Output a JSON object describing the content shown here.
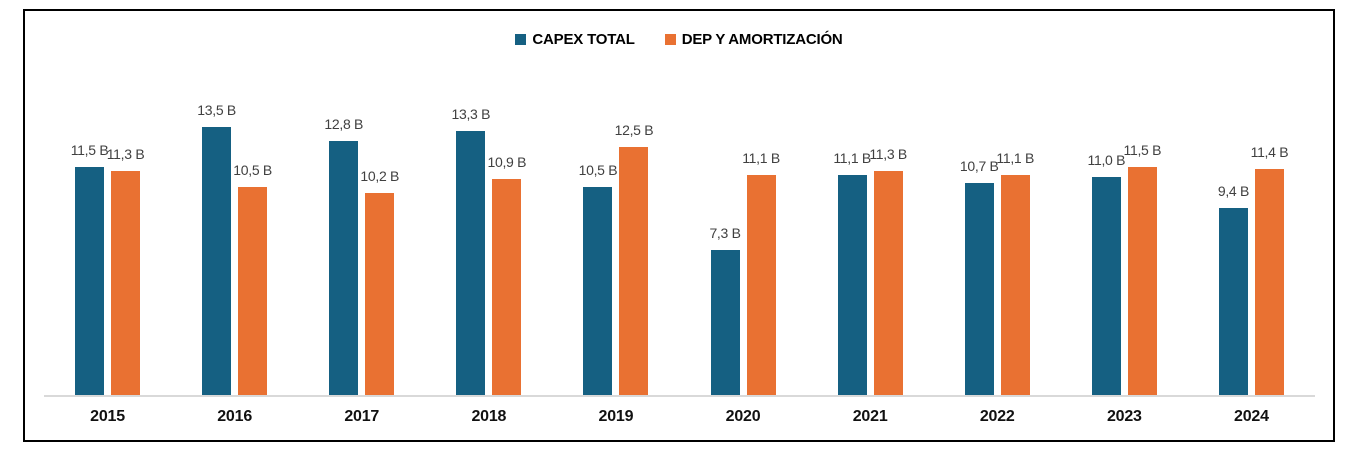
{
  "chart_data": {
    "type": "bar",
    "title": "",
    "categories": [
      "2015",
      "2016",
      "2017",
      "2018",
      "2019",
      "2020",
      "2021",
      "2022",
      "2023",
      "2024"
    ],
    "series": [
      {
        "name": "CAPEX TOTAL",
        "color": "#156082",
        "values": [
          11.5,
          13.5,
          12.8,
          13.3,
          10.5,
          7.3,
          11.1,
          10.7,
          11.0,
          9.4
        ],
        "labels": [
          "11,5 B",
          "13,5 B",
          "12,8 B",
          "13,3 B",
          "10,5 B",
          "7,3 B",
          "11,1 B",
          "10,7 B",
          "11,0 B",
          "9,4 B"
        ]
      },
      {
        "name": "DEP Y AMORTIZACIÓN",
        "color": "#E97132",
        "values": [
          11.3,
          10.5,
          10.2,
          10.9,
          12.5,
          11.1,
          11.3,
          11.1,
          11.5,
          11.4
        ],
        "labels": [
          "11,3 B",
          "10,5 B",
          "10,2 B",
          "10,9 B",
          "12,5 B",
          "11,1 B",
          "11,3 B",
          "11,1 B",
          "11,5 B",
          "11,4 B"
        ]
      }
    ],
    "unit": "B",
    "ylim": [
      0,
      14
    ],
    "legend_position": "top-center",
    "grid": false,
    "value_labels": "outside-end",
    "colors": {
      "axis_line": "#d9d9d9",
      "value_label_text": "#404040",
      "category_label_text": "#111111",
      "frame_border": "#000000",
      "background": "#ffffff"
    }
  }
}
